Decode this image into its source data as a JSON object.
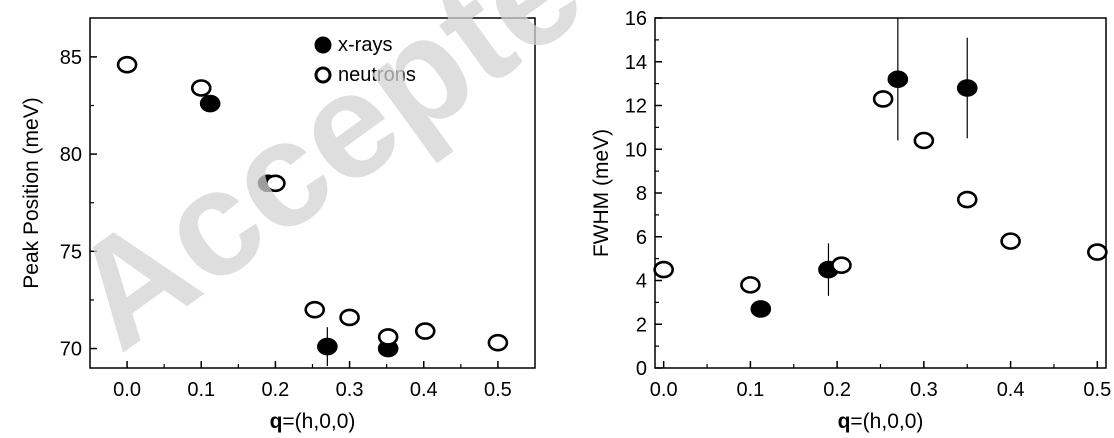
{
  "watermark": "Accepted",
  "chart_data": [
    {
      "type": "scatter",
      "xlabel_bold": "q",
      "xlabel_rest": "=(h,0,0)",
      "ylabel": "Peak Position (meV)",
      "xlim": [
        -0.05,
        0.55
      ],
      "ylim": [
        69,
        87
      ],
      "x_ticks": [
        "0.0",
        "0.1",
        "0.2",
        "0.3",
        "0.4",
        "0.5"
      ],
      "y_ticks": [
        "70",
        "75",
        "80",
        "85"
      ],
      "legend": {
        "position": "top-center",
        "entries": [
          "x-rays",
          "neutrons"
        ]
      },
      "series": [
        {
          "name": "x-rays",
          "marker": "filled",
          "x": [
            0.112,
            0.19,
            0.27,
            0.352
          ],
          "y": [
            82.6,
            78.5,
            70.1,
            70.0
          ],
          "err": [
            0,
            0,
            1.0,
            0.4
          ]
        },
        {
          "name": "neutrons",
          "marker": "open",
          "x": [
            0.0,
            0.1,
            0.2,
            0.253,
            0.3,
            0.352,
            0.402,
            0.5
          ],
          "y": [
            84.6,
            83.4,
            78.5,
            72.0,
            71.6,
            70.6,
            70.9,
            70.3
          ],
          "err": [
            0,
            0,
            0,
            0,
            0,
            0,
            0,
            0
          ]
        }
      ]
    },
    {
      "type": "scatter",
      "xlabel_bold": "q",
      "xlabel_rest": "=(h,0,0)",
      "ylabel": "FWHM (meV)",
      "xlim": [
        -0.01,
        0.51
      ],
      "ylim": [
        0,
        16
      ],
      "x_ticks": [
        "0.0",
        "0.1",
        "0.2",
        "0.3",
        "0.4",
        "0.5"
      ],
      "y_ticks": [
        "0",
        "2",
        "4",
        "6",
        "8",
        "10",
        "12",
        "14",
        "16"
      ],
      "series": [
        {
          "name": "x-rays",
          "marker": "filled",
          "x": [
            0.112,
            0.19,
            0.27,
            0.35
          ],
          "y": [
            2.7,
            4.5,
            13.2,
            12.8
          ],
          "err": [
            0,
            1.2,
            2.8,
            2.3
          ]
        },
        {
          "name": "neutrons",
          "marker": "open",
          "x": [
            0.0,
            0.1,
            0.205,
            0.253,
            0.3,
            0.35,
            0.4,
            0.5
          ],
          "y": [
            4.5,
            3.8,
            4.7,
            12.3,
            10.4,
            7.7,
            5.8,
            5.3
          ],
          "err": [
            0,
            0,
            0,
            0,
            0,
            0,
            0,
            0
          ]
        }
      ]
    }
  ]
}
